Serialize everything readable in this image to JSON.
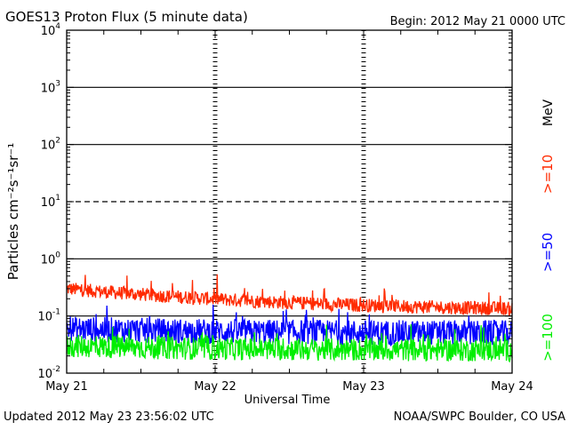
{
  "chart_data": {
    "type": "line",
    "title": "GOES13 Proton Flux (5 minute data)",
    "begin_label": "Begin: 2012 May 21 0000 UTC",
    "ylabel": "Particles cm⁻²s⁻¹sr⁻¹",
    "xlabel": "Universal Time",
    "y_scale": "log",
    "ylim": [
      0.01,
      10000
    ],
    "y_ticks": [
      {
        "value": 10000,
        "base": "10",
        "exp": "4"
      },
      {
        "value": 1000,
        "base": "10",
        "exp": "3"
      },
      {
        "value": 100,
        "base": "10",
        "exp": "2"
      },
      {
        "value": 10,
        "base": "10",
        "exp": "1"
      },
      {
        "value": 1,
        "base": "10",
        "exp": "0"
      },
      {
        "value": 0.1,
        "base": "10",
        "exp": "-1"
      },
      {
        "value": 0.01,
        "base": "10",
        "exp": "-2"
      }
    ],
    "x_ticks": [
      "May 21",
      "May 22",
      "May 23",
      "May 24"
    ],
    "xlim_days": [
      0,
      3
    ],
    "unit_label": "MeV",
    "grid": {
      "solid_at": [
        1000,
        100,
        1,
        0.1
      ],
      "dashed_at": [
        10
      ]
    },
    "series": [
      {
        "name": ">=10",
        "color": "#ff2a00",
        "baseline": 0.12,
        "start": 0.3,
        "decay": 1.2,
        "spread": 0.12,
        "spike": 0.1
      },
      {
        "name": ">=50",
        "color": "#0000ff",
        "baseline": 0.05,
        "start": 0.06,
        "decay": 1.0,
        "spread": 0.22,
        "spike": 0.09
      },
      {
        "name": ">=100",
        "color": "#00ee00",
        "baseline": 0.025,
        "start": 0.03,
        "decay": 1.0,
        "spread": 0.2,
        "spike": 0.08
      }
    ]
  },
  "footer": {
    "updated": "Updated 2012 May 23 23:56:02 UTC",
    "credit": "NOAA/SWPC Boulder, CO USA"
  }
}
